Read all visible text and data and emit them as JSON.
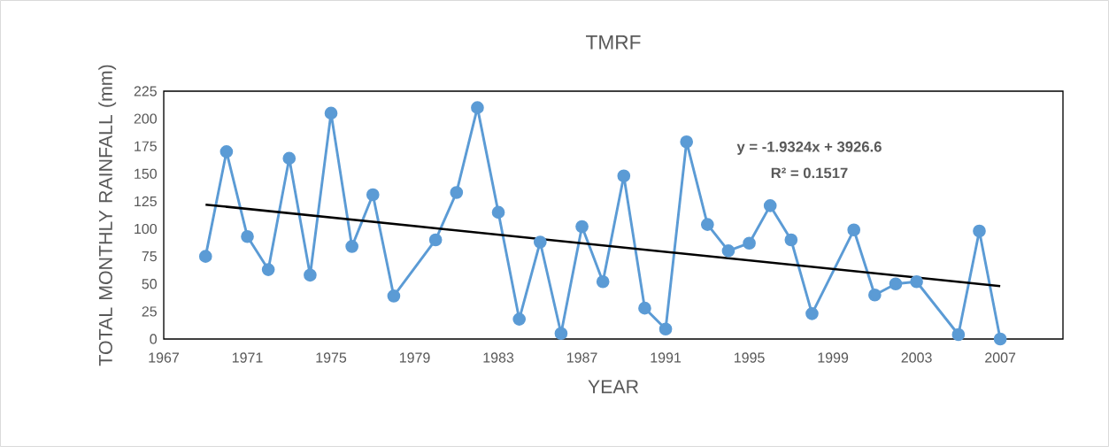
{
  "chart_data": {
    "type": "line",
    "title": "TMRF",
    "xlabel": "YEAR",
    "ylabel": "TOTAL MONTHLY RAINFALL (mm)",
    "annotations": [
      "y = -1.9324x + 3926.6",
      "R² = 0.1517"
    ],
    "xlim": [
      1967,
      2010
    ],
    "xticks": [
      1967,
      1971,
      1975,
      1979,
      1983,
      1987,
      1991,
      1995,
      1999,
      2003,
      2007
    ],
    "ylim": [
      0,
      225
    ],
    "yticks": [
      0,
      25,
      50,
      75,
      100,
      125,
      150,
      175,
      200,
      225
    ],
    "grid": false,
    "marker": "circle",
    "line_style": "solid",
    "series": [
      {
        "color": "#5b9bd5",
        "x": [
          1969,
          1970,
          1971,
          1972,
          1973,
          1974,
          1975,
          1976,
          1977,
          1978,
          1980,
          1981,
          1982,
          1983,
          1984,
          1985,
          1986,
          1987,
          1988,
          1989,
          1990,
          1991,
          1992,
          1993,
          1994,
          1995,
          1996,
          1997,
          1998,
          2000,
          2001,
          2002,
          2003,
          2005,
          2006,
          2007
        ],
        "values": [
          75,
          170,
          93,
          63,
          164,
          58,
          205,
          84,
          131,
          39,
          90,
          133,
          210,
          115,
          18,
          88,
          5,
          102,
          52,
          148,
          28,
          9,
          179,
          104,
          80,
          87,
          121,
          90,
          23,
          99,
          40,
          50,
          52,
          4,
          98,
          0
        ]
      },
      {
        "type": "line",
        "color": "#000000",
        "marker": "none",
        "x": [
          1969,
          2007
        ],
        "values": [
          122,
          48
        ]
      }
    ]
  }
}
